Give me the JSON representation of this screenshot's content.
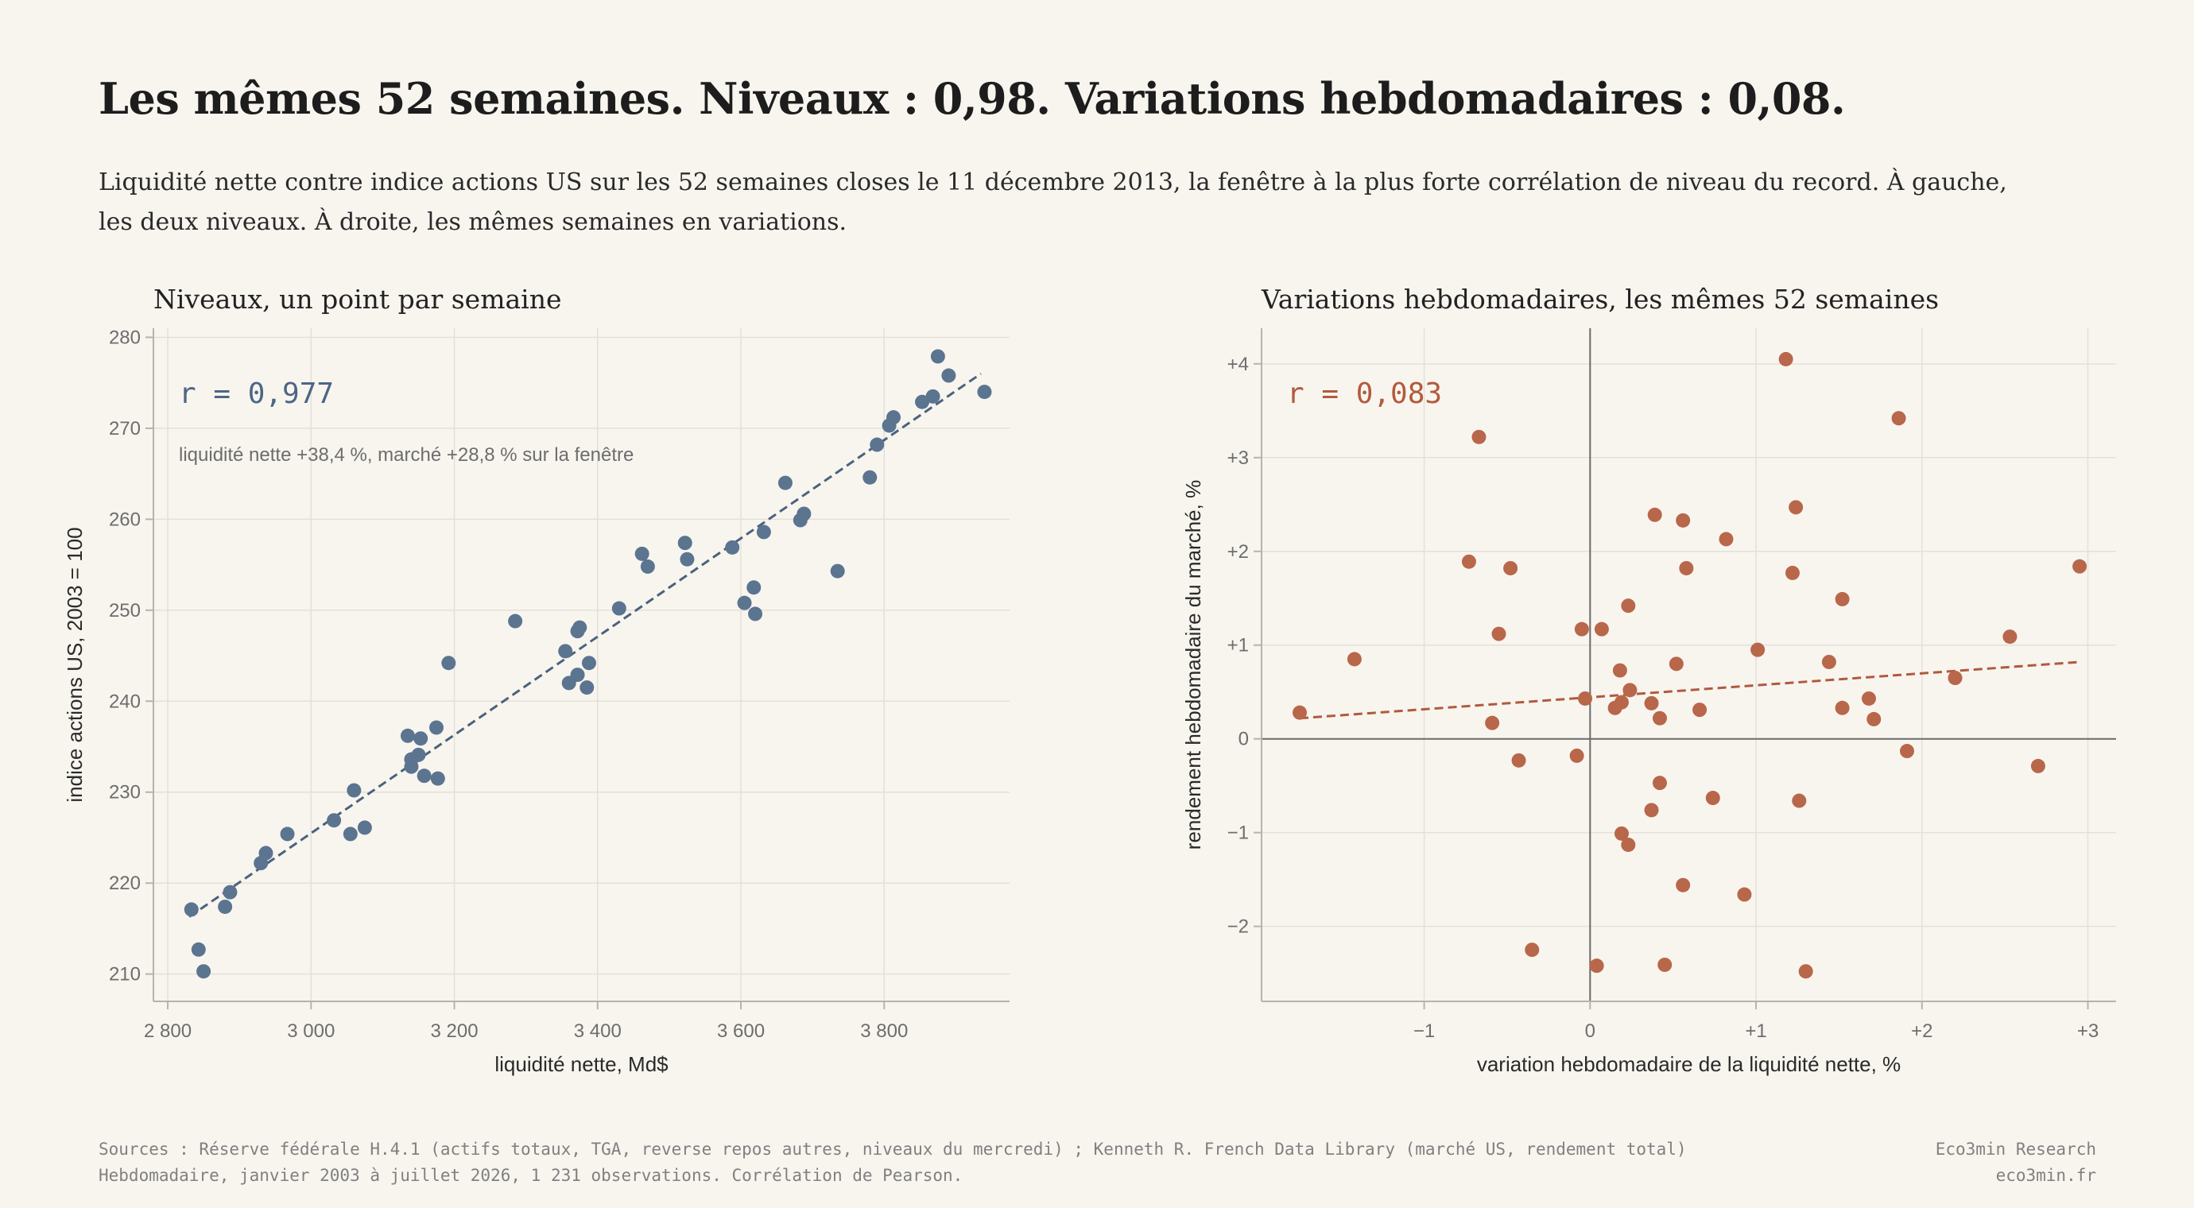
{
  "header": {
    "title": "Les mêmes 52 semaines. Niveaux : 0,98. Variations hebdomadaires : 0,08.",
    "subtitle": "Liquidité nette contre indice actions US sur les 52 semaines closes le 11 décembre 2013, la fenêtre à la plus forte corrélation de niveau du record. À gauche, les deux niveaux. À droite, les mêmes semaines en variations."
  },
  "footer": {
    "sources": "Sources : Réserve fédérale H.4.1 (actifs totaux, TGA, reverse repos autres, niveaux du mercredi) ; Kenneth R. French Data Library (marché US, rendement total)",
    "note": "Hebdomadaire, janvier 2003 à juillet 2026, 1 231 observations. Corrélation de Pearson.",
    "brand": "Eco3min Research",
    "url": "eco3min.fr"
  },
  "colors": {
    "left_points": "#5b7490",
    "left_line": "#4a627d",
    "left_annotation": "#4d6684",
    "right_points": "#b8674a",
    "right_line": "#b05a3e",
    "right_annotation": "#b25a3e",
    "grid": "#e4e0d8",
    "axis": "#b8b3a9",
    "zero_line": "#6a6a6a"
  },
  "chart_data": [
    {
      "type": "scatter",
      "title": "Niveaux, un point par semaine",
      "xlabel": "liquidité nette, Md$",
      "ylabel": "indice actions US, 2003 = 100",
      "xlim": [
        2780,
        3975
      ],
      "ylim": [
        207,
        281
      ],
      "xticks": [
        2800,
        3000,
        3200,
        3400,
        3600,
        3800
      ],
      "xtick_labels": [
        "2 800",
        "3 000",
        "3 200",
        "3 400",
        "3 600",
        "3 800"
      ],
      "yticks": [
        210,
        220,
        230,
        240,
        250,
        260,
        270,
        280
      ],
      "ytick_labels": [
        "210",
        "220",
        "230",
        "240",
        "250",
        "260",
        "270",
        "280"
      ],
      "grid": true,
      "annotation": "r = 0,977",
      "annotation_note": "liquidité nette +38,4 %, marché +28,8 % sur la fenêtre",
      "trend_line": {
        "x": [
          2830,
          3935
        ],
        "y": [
          216.3,
          276
        ]
      },
      "points": [
        {
          "x": 2833,
          "y": 217.1
        },
        {
          "x": 2843,
          "y": 212.7
        },
        {
          "x": 2850,
          "y": 210.3
        },
        {
          "x": 2880,
          "y": 217.4
        },
        {
          "x": 2887,
          "y": 219.0
        },
        {
          "x": 2930,
          "y": 222.2
        },
        {
          "x": 2937,
          "y": 223.3
        },
        {
          "x": 2967,
          "y": 225.4
        },
        {
          "x": 3032,
          "y": 226.9
        },
        {
          "x": 3055,
          "y": 225.4
        },
        {
          "x": 3060,
          "y": 230.2
        },
        {
          "x": 3075,
          "y": 226.1
        },
        {
          "x": 3135,
          "y": 236.2
        },
        {
          "x": 3140,
          "y": 233.6
        },
        {
          "x": 3140,
          "y": 232.8
        },
        {
          "x": 3150,
          "y": 234.1
        },
        {
          "x": 3153,
          "y": 235.9
        },
        {
          "x": 3158,
          "y": 231.8
        },
        {
          "x": 3175,
          "y": 237.1
        },
        {
          "x": 3177,
          "y": 231.5
        },
        {
          "x": 3192,
          "y": 244.2
        },
        {
          "x": 3285,
          "y": 248.8
        },
        {
          "x": 3355,
          "y": 245.5
        },
        {
          "x": 3360,
          "y": 242.0
        },
        {
          "x": 3372,
          "y": 242.9
        },
        {
          "x": 3372,
          "y": 247.7
        },
        {
          "x": 3375,
          "y": 248.1
        },
        {
          "x": 3385,
          "y": 241.5
        },
        {
          "x": 3388,
          "y": 244.2
        },
        {
          "x": 3430,
          "y": 250.2
        },
        {
          "x": 3462,
          "y": 256.2
        },
        {
          "x": 3470,
          "y": 254.8
        },
        {
          "x": 3522,
          "y": 257.4
        },
        {
          "x": 3525,
          "y": 255.6
        },
        {
          "x": 3588,
          "y": 256.9
        },
        {
          "x": 3605,
          "y": 250.8
        },
        {
          "x": 3618,
          "y": 252.5
        },
        {
          "x": 3620,
          "y": 249.6
        },
        {
          "x": 3632,
          "y": 258.6
        },
        {
          "x": 3662,
          "y": 264.0
        },
        {
          "x": 3683,
          "y": 259.9
        },
        {
          "x": 3688,
          "y": 260.6
        },
        {
          "x": 3735,
          "y": 254.3
        },
        {
          "x": 3780,
          "y": 264.6
        },
        {
          "x": 3790,
          "y": 268.2
        },
        {
          "x": 3807,
          "y": 270.3
        },
        {
          "x": 3813,
          "y": 271.2
        },
        {
          "x": 3853,
          "y": 272.9
        },
        {
          "x": 3868,
          "y": 273.5
        },
        {
          "x": 3875,
          "y": 277.9
        },
        {
          "x": 3890,
          "y": 275.8
        },
        {
          "x": 3940,
          "y": 274.0
        }
      ]
    },
    {
      "type": "scatter",
      "title": "Variations hebdomadaires, les mêmes 52 semaines",
      "xlabel": "variation hebdomadaire de la liquidité nette, %",
      "ylabel": "rendement hebdomadaire du marché, %",
      "xlim": [
        -1.98,
        3.17
      ],
      "ylim": [
        -2.8,
        4.38
      ],
      "xticks": [
        -1,
        0,
        1,
        2,
        3
      ],
      "xtick_labels": [
        "−1",
        "0",
        "+1",
        "+2",
        "+3"
      ],
      "yticks": [
        -2,
        -1,
        0,
        1,
        2,
        3,
        4
      ],
      "ytick_labels": [
        "−2",
        "−1",
        "0",
        "+1",
        "+2",
        "+3",
        "+4"
      ],
      "grid": true,
      "zero_lines": true,
      "annotation": "r = 0,083",
      "trend_line": {
        "x": [
          -1.75,
          2.95
        ],
        "y": [
          0.22,
          0.82
        ]
      },
      "points": [
        {
          "x": -1.75,
          "y": 0.28
        },
        {
          "x": -1.42,
          "y": 0.85
        },
        {
          "x": -0.67,
          "y": 3.22
        },
        {
          "x": -0.73,
          "y": 1.89
        },
        {
          "x": -0.48,
          "y": 1.82
        },
        {
          "x": -0.55,
          "y": 1.12
        },
        {
          "x": -0.59,
          "y": 0.17
        },
        {
          "x": -0.43,
          "y": -0.23
        },
        {
          "x": -0.35,
          "y": -2.25
        },
        {
          "x": -0.08,
          "y": -0.18
        },
        {
          "x": -0.05,
          "y": 1.17
        },
        {
          "x": -0.03,
          "y": 0.43
        },
        {
          "x": 0.07,
          "y": 1.17
        },
        {
          "x": 0.04,
          "y": -2.42
        },
        {
          "x": 0.15,
          "y": 0.33
        },
        {
          "x": 0.18,
          "y": 0.73
        },
        {
          "x": 0.19,
          "y": 0.39
        },
        {
          "x": 0.24,
          "y": 0.52
        },
        {
          "x": 0.23,
          "y": 1.42
        },
        {
          "x": 0.19,
          "y": -1.01
        },
        {
          "x": 0.23,
          "y": -1.13
        },
        {
          "x": 0.37,
          "y": 0.38
        },
        {
          "x": 0.39,
          "y": 2.39
        },
        {
          "x": 0.42,
          "y": 0.22
        },
        {
          "x": 0.42,
          "y": -0.47
        },
        {
          "x": 0.37,
          "y": -0.76
        },
        {
          "x": 0.45,
          "y": -2.41
        },
        {
          "x": 0.52,
          "y": 0.8
        },
        {
          "x": 0.56,
          "y": 2.33
        },
        {
          "x": 0.58,
          "y": 1.82
        },
        {
          "x": 0.56,
          "y": -1.56
        },
        {
          "x": 0.66,
          "y": 0.31
        },
        {
          "x": 0.74,
          "y": -0.63
        },
        {
          "x": 0.82,
          "y": 2.13
        },
        {
          "x": 0.93,
          "y": -1.66
        },
        {
          "x": 1.01,
          "y": 0.95
        },
        {
          "x": 1.18,
          "y": 4.05
        },
        {
          "x": 1.22,
          "y": 1.77
        },
        {
          "x": 1.24,
          "y": 2.47
        },
        {
          "x": 1.26,
          "y": -0.66
        },
        {
          "x": 1.3,
          "y": -2.48
        },
        {
          "x": 1.52,
          "y": 1.49
        },
        {
          "x": 1.52,
          "y": 0.33
        },
        {
          "x": 1.44,
          "y": 0.82
        },
        {
          "x": 1.68,
          "y": 0.43
        },
        {
          "x": 1.71,
          "y": 0.21
        },
        {
          "x": 1.86,
          "y": 3.42
        },
        {
          "x": 1.91,
          "y": -0.13
        },
        {
          "x": 2.2,
          "y": 0.65
        },
        {
          "x": 2.53,
          "y": 1.09
        },
        {
          "x": 2.7,
          "y": -0.29
        },
        {
          "x": 2.95,
          "y": 1.84
        }
      ]
    }
  ]
}
